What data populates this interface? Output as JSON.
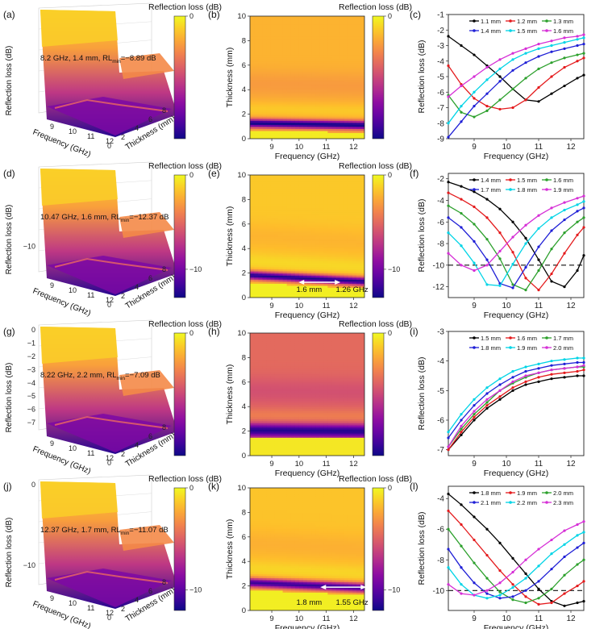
{
  "common": {
    "cb_title": "Reflection loss (dB)",
    "freq_label": "Frequency (GHz)",
    "thick_label": "Thickness (mm)",
    "rl_label": "Reflection loss (dB)",
    "freq_ticks": [
      "9",
      "10",
      "11",
      "12"
    ],
    "thick_ticks": [
      "0",
      "2",
      "4",
      "6",
      "8",
      "10"
    ],
    "mini_freq_ticks": [
      "9",
      "10",
      "11",
      "12"
    ],
    "mini_thick_ticks": [
      "0",
      "2",
      "4",
      "6",
      "8",
      "10"
    ],
    "rl_sub": "min"
  },
  "rows": [
    {
      "panels": [
        "(a)",
        "(b)",
        "(c)"
      ],
      "annot_pre": "8.2 GHz, 1.4 mm, RL",
      "annot_post": "=−8.89 dB",
      "s3d_zticks": [],
      "cb_ticks": [
        "0"
      ],
      "cb_ticks_z": [
        0
      ],
      "zmin": -9,
      "zmax": 0,
      "hm_min": -9,
      "hm_max": 0,
      "hm_base": -1.5,
      "ridge": {
        "t0": 1.3,
        "slope": -0.04,
        "depth": -7.5,
        "width": 0.35
      },
      "hm_arrow": null
    },
    {
      "panels": [
        "(d)",
        "(e)",
        "(f)"
      ],
      "annot_pre": "10.47 GHz, 1.6 mm, RL",
      "annot_post": "=−12.37 dB",
      "s3d_zticks": [
        "−10"
      ],
      "s3d_zticks_v": [
        -10
      ],
      "cb_ticks": [
        "0",
        "−10"
      ],
      "cb_ticks_z": [
        0,
        -10
      ],
      "zmin": -13,
      "zmax": 0,
      "hm_min": -13,
      "hm_max": 0,
      "hm_base": -1.5,
      "ridge": {
        "t0": 1.85,
        "slope": -0.12,
        "depth": -11,
        "width": 0.35
      },
      "hm_arrow": {
        "left": "1.6 mm",
        "right": "1.26 GHz",
        "x1": 10.1,
        "x2": 11.4,
        "y": 1.25
      }
    },
    {
      "panels": [
        "(g)",
        "(h)",
        "(i)"
      ],
      "annot_pre": "8.22 GHz, 2.2 mm, RL",
      "annot_post": "=−7.09 dB",
      "s3d_zticks": [
        "0",
        "−1",
        "−2",
        "−3",
        "−4",
        "−5",
        "−6",
        "−7"
      ],
      "s3d_zticks_v": [
        0,
        -1,
        -2,
        -3,
        -4,
        -5,
        -6,
        -7
      ],
      "cb_ticks": [
        "0"
      ],
      "cb_ticks_z": [
        0
      ],
      "zmin": -7.3,
      "zmax": 0,
      "hm_min": -7.3,
      "hm_max": 0,
      "hm_base": -2.8,
      "ridge": {
        "t0": 2.1,
        "slope": -0.02,
        "depth": -4.2,
        "width": 0.55
      },
      "hm_arrow": null
    },
    {
      "panels": [
        "(j)",
        "(k)",
        "(l)"
      ],
      "annot_pre": "12.37 GHz, 1.7 mm, RL",
      "annot_post": "=−11.07 dB",
      "s3d_zticks": [
        "0",
        "−10"
      ],
      "s3d_zticks_v": [
        0,
        -10
      ],
      "cb_ticks": [
        "0",
        "−10"
      ],
      "cb_ticks_z": [
        0,
        -10
      ],
      "zmin": -12,
      "zmax": 0,
      "hm_min": -12,
      "hm_max": 0,
      "hm_base": -1.5,
      "ridge": {
        "t0": 2.3,
        "slope": -0.1,
        "depth": -9.5,
        "width": 0.38
      },
      "hm_arrow": {
        "left": "1.8 mm",
        "right": "1.55 GHz",
        "x1": 10.9,
        "x2": 12.4,
        "y": 1.9
      }
    }
  ],
  "chart_data": [
    {
      "type": "line",
      "panel": "(c)",
      "xlabel": "Frequency (GHz)",
      "ylabel": "Reflection loss (dB)",
      "xlim": [
        8.2,
        12.4
      ],
      "ylim": [
        -9,
        -1
      ],
      "yticks": [
        -9,
        -8,
        -7,
        -6,
        -5,
        -4,
        -3,
        -2,
        -1
      ],
      "xticks": [
        9,
        10,
        11,
        12
      ],
      "x": [
        8.2,
        8.6,
        9.0,
        9.4,
        9.8,
        10.2,
        10.6,
        11.0,
        11.4,
        11.8,
        12.2,
        12.4
      ],
      "series": [
        {
          "name": "1.1 mm",
          "color": "#000000",
          "values": [
            -2.4,
            -3.0,
            -3.6,
            -4.3,
            -5.0,
            -5.8,
            -6.5,
            -6.6,
            -6.1,
            -5.6,
            -5.1,
            -4.9
          ]
        },
        {
          "name": "1.2 mm",
          "color": "#e41a1c",
          "values": [
            -4.3,
            -5.5,
            -6.4,
            -6.9,
            -7.1,
            -7.0,
            -6.5,
            -5.7,
            -5.0,
            -4.4,
            -4.0,
            -3.8
          ]
        },
        {
          "name": "1.3 mm",
          "color": "#2ca02c",
          "values": [
            -6.2,
            -7.3,
            -7.6,
            -7.2,
            -6.5,
            -5.8,
            -5.1,
            -4.5,
            -4.1,
            -3.8,
            -3.6,
            -3.5
          ]
        },
        {
          "name": "1.4 mm",
          "color": "#1f1fd6",
          "values": [
            -8.9,
            -7.9,
            -6.9,
            -6.1,
            -5.3,
            -4.6,
            -4.1,
            -3.7,
            -3.4,
            -3.2,
            -3.0,
            -2.9
          ]
        },
        {
          "name": "1.5 mm",
          "color": "#00d4e6",
          "values": [
            -8.0,
            -6.9,
            -6.0,
            -5.2,
            -4.5,
            -3.9,
            -3.5,
            -3.2,
            -3.0,
            -2.8,
            -2.6,
            -2.5
          ]
        },
        {
          "name": "1.6 mm",
          "color": "#d62fd6",
          "values": [
            -6.3,
            -5.6,
            -5.0,
            -4.4,
            -3.9,
            -3.5,
            -3.2,
            -2.9,
            -2.7,
            -2.5,
            -2.4,
            -2.3
          ]
        }
      ],
      "dashed": null
    },
    {
      "type": "line",
      "panel": "(f)",
      "xlabel": "Frequency (GHz)",
      "ylabel": "Reflection loss (dB)",
      "xlim": [
        8.2,
        12.4
      ],
      "ylim": [
        -13,
        -1.5
      ],
      "yticks": [
        -12,
        -10,
        -8,
        -6,
        -4,
        -2
      ],
      "xticks": [
        9,
        10,
        11,
        12
      ],
      "x": [
        8.2,
        8.6,
        9.0,
        9.4,
        9.8,
        10.2,
        10.6,
        11.0,
        11.4,
        11.8,
        12.2,
        12.4
      ],
      "series": [
        {
          "name": "1.4 mm",
          "color": "#000000",
          "values": [
            -2.3,
            -2.7,
            -3.2,
            -3.9,
            -4.8,
            -6.0,
            -7.5,
            -9.5,
            -11.5,
            -12.0,
            -10.5,
            -9.1
          ]
        },
        {
          "name": "1.5 mm",
          "color": "#e41a1c",
          "values": [
            -3.3,
            -3.9,
            -4.6,
            -5.6,
            -7.0,
            -8.8,
            -11.2,
            -12.3,
            -10.8,
            -8.9,
            -7.2,
            -6.5
          ]
        },
        {
          "name": "1.6 mm",
          "color": "#2ca02c",
          "values": [
            -4.5,
            -5.2,
            -6.2,
            -7.6,
            -9.4,
            -11.8,
            -12.3,
            -10.5,
            -8.5,
            -7.0,
            -6.0,
            -5.6
          ]
        },
        {
          "name": "1.7 mm",
          "color": "#1f1fd6",
          "values": [
            -5.6,
            -6.5,
            -7.8,
            -9.5,
            -11.7,
            -12.1,
            -10.2,
            -8.3,
            -6.8,
            -5.8,
            -5.0,
            -4.7
          ]
        },
        {
          "name": "1.8 mm",
          "color": "#00d4e6",
          "values": [
            -7.0,
            -8.2,
            -9.8,
            -11.8,
            -11.9,
            -9.9,
            -8.0,
            -6.6,
            -5.6,
            -4.9,
            -4.4,
            -4.1
          ]
        },
        {
          "name": "1.9 mm",
          "color": "#d62fd6",
          "values": [
            -8.9,
            -10.0,
            -10.5,
            -10.0,
            -8.7,
            -7.4,
            -6.3,
            -5.4,
            -4.7,
            -4.2,
            -3.8,
            -3.6
          ]
        }
      ],
      "dashed": -10
    },
    {
      "type": "line",
      "panel": "(i)",
      "xlabel": "Frequency (GHz)",
      "ylabel": "Reflection loss (dB)",
      "xlim": [
        8.2,
        12.4
      ],
      "ylim": [
        -7.2,
        -3
      ],
      "yticks": [
        -7,
        -6,
        -5,
        -4,
        -3
      ],
      "xticks": [
        9,
        10,
        11,
        12
      ],
      "x": [
        8.2,
        8.6,
        9.0,
        9.4,
        9.8,
        10.2,
        10.6,
        11.0,
        11.4,
        11.8,
        12.2,
        12.4
      ],
      "series": [
        {
          "name": "1.5 mm",
          "color": "#000000",
          "values": [
            -7.0,
            -6.5,
            -6.0,
            -5.6,
            -5.3,
            -5.0,
            -4.8,
            -4.7,
            -4.6,
            -4.55,
            -4.5,
            -4.5
          ]
        },
        {
          "name": "1.6 mm",
          "color": "#e41a1c",
          "values": [
            -7.0,
            -6.4,
            -5.9,
            -5.5,
            -5.2,
            -4.9,
            -4.7,
            -4.55,
            -4.45,
            -4.4,
            -4.35,
            -4.3
          ]
        },
        {
          "name": "1.7 mm",
          "color": "#2ca02c",
          "values": [
            -6.9,
            -6.3,
            -5.8,
            -5.4,
            -5.0,
            -4.75,
            -4.55,
            -4.4,
            -4.3,
            -4.25,
            -4.2,
            -4.2
          ]
        },
        {
          "name": "1.8 mm",
          "color": "#1f1fd6",
          "values": [
            -6.6,
            -6.0,
            -5.5,
            -5.1,
            -4.8,
            -4.55,
            -4.35,
            -4.25,
            -4.15,
            -4.1,
            -4.05,
            -4.05
          ]
        },
        {
          "name": "1.9 mm",
          "color": "#00d4e6",
          "values": [
            -6.4,
            -5.8,
            -5.3,
            -4.9,
            -4.6,
            -4.35,
            -4.2,
            -4.1,
            -4.0,
            -3.95,
            -3.9,
            -3.9
          ]
        },
        {
          "name": "2.0 mm",
          "color": "#d62fd6",
          "values": [
            -6.9,
            -6.2,
            -5.7,
            -5.3,
            -5.0,
            -4.7,
            -4.5,
            -4.4,
            -4.3,
            -4.25,
            -4.2,
            -4.15
          ]
        }
      ],
      "dashed": null
    },
    {
      "type": "line",
      "panel": "(l)",
      "xlabel": "Frequency (GHz)",
      "ylabel": "Reflection loss (dB)",
      "xlim": [
        8.2,
        12.4
      ],
      "ylim": [
        -11.3,
        -3.2
      ],
      "yticks": [
        -10,
        -8,
        -6,
        -4
      ],
      "xticks": [
        9,
        10,
        11,
        12
      ],
      "x": [
        8.2,
        8.6,
        9.0,
        9.4,
        9.8,
        10.2,
        10.6,
        11.0,
        11.4,
        11.8,
        12.2,
        12.4
      ],
      "series": [
        {
          "name": "1.8 mm",
          "color": "#000000",
          "values": [
            -3.7,
            -4.4,
            -5.2,
            -6.0,
            -6.9,
            -7.9,
            -8.9,
            -9.9,
            -10.7,
            -11.0,
            -10.8,
            -10.7
          ]
        },
        {
          "name": "1.9 mm",
          "color": "#e41a1c",
          "values": [
            -4.8,
            -5.7,
            -6.7,
            -7.7,
            -8.7,
            -9.6,
            -10.4,
            -10.9,
            -10.8,
            -10.2,
            -9.7,
            -9.4
          ]
        },
        {
          "name": "2.0 mm",
          "color": "#2ca02c",
          "values": [
            -6.0,
            -7.1,
            -8.2,
            -9.2,
            -10.1,
            -10.6,
            -10.8,
            -10.5,
            -9.9,
            -9.0,
            -8.3,
            -8.0
          ]
        },
        {
          "name": "2.1 mm",
          "color": "#1f1fd6",
          "values": [
            -7.3,
            -8.5,
            -9.5,
            -10.2,
            -10.5,
            -10.4,
            -10.0,
            -9.4,
            -8.6,
            -7.8,
            -7.2,
            -6.9
          ]
        },
        {
          "name": "2.2 mm",
          "color": "#00d4e6",
          "values": [
            -8.5,
            -9.6,
            -10.3,
            -10.5,
            -10.3,
            -9.8,
            -9.2,
            -8.4,
            -7.6,
            -7.0,
            -6.4,
            -6.2
          ]
        },
        {
          "name": "2.3 mm",
          "color": "#d62fd6",
          "values": [
            -9.6,
            -10.2,
            -10.3,
            -10.0,
            -9.5,
            -8.8,
            -8.0,
            -7.3,
            -6.7,
            -6.1,
            -5.7,
            -5.5
          ]
        }
      ],
      "dashed": -10
    }
  ]
}
